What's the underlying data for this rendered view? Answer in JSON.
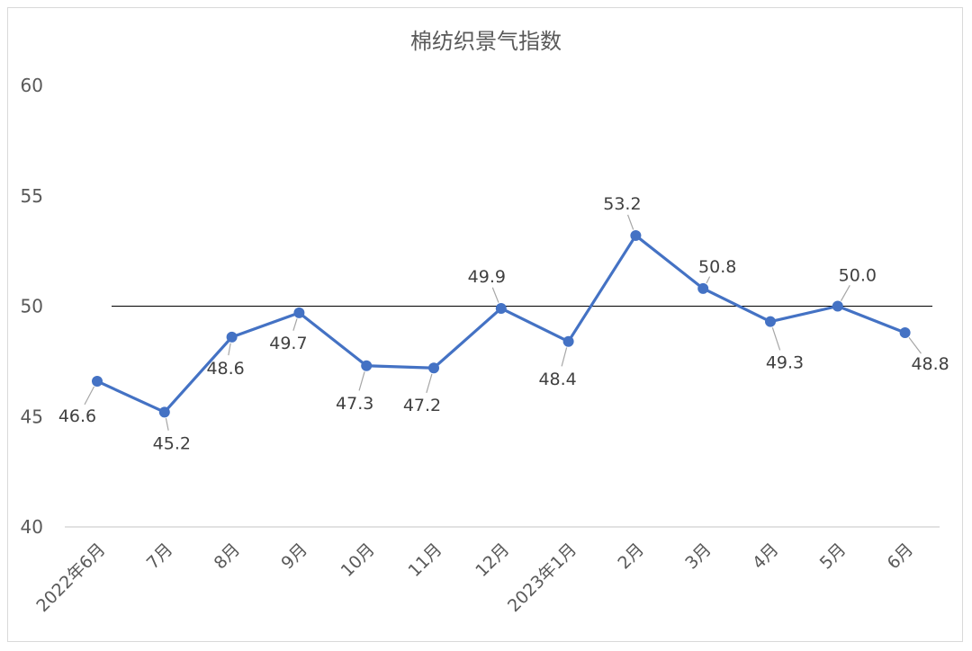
{
  "chart_data": {
    "type": "line",
    "title": "棉纺织景气指数",
    "categories": [
      "2022年6月",
      "7月",
      "8月",
      "9月",
      "10月",
      "11月",
      "12月",
      "2023年1月",
      "2月",
      "3月",
      "4月",
      "5月",
      "6月"
    ],
    "series": [
      {
        "values": [
          46.6,
          45.2,
          48.6,
          49.7,
          47.3,
          47.2,
          49.9,
          48.4,
          53.2,
          50.8,
          49.3,
          50.0,
          48.8
        ],
        "labels": [
          "46.6",
          "45.2",
          "48.6",
          "49.7",
          "47.3",
          "47.2",
          "49.9",
          "48.4",
          "53.2",
          "50.8",
          "49.3",
          "50.0",
          "48.8"
        ],
        "color": "#4472c4"
      }
    ],
    "reference_line": {
      "value": 50,
      "color": "#000000"
    },
    "ylim": [
      40,
      60
    ],
    "yticks": [
      "40",
      "45",
      "50",
      "55",
      "60"
    ],
    "xlabel": "",
    "ylabel": "",
    "grid": false,
    "legend": "none"
  }
}
